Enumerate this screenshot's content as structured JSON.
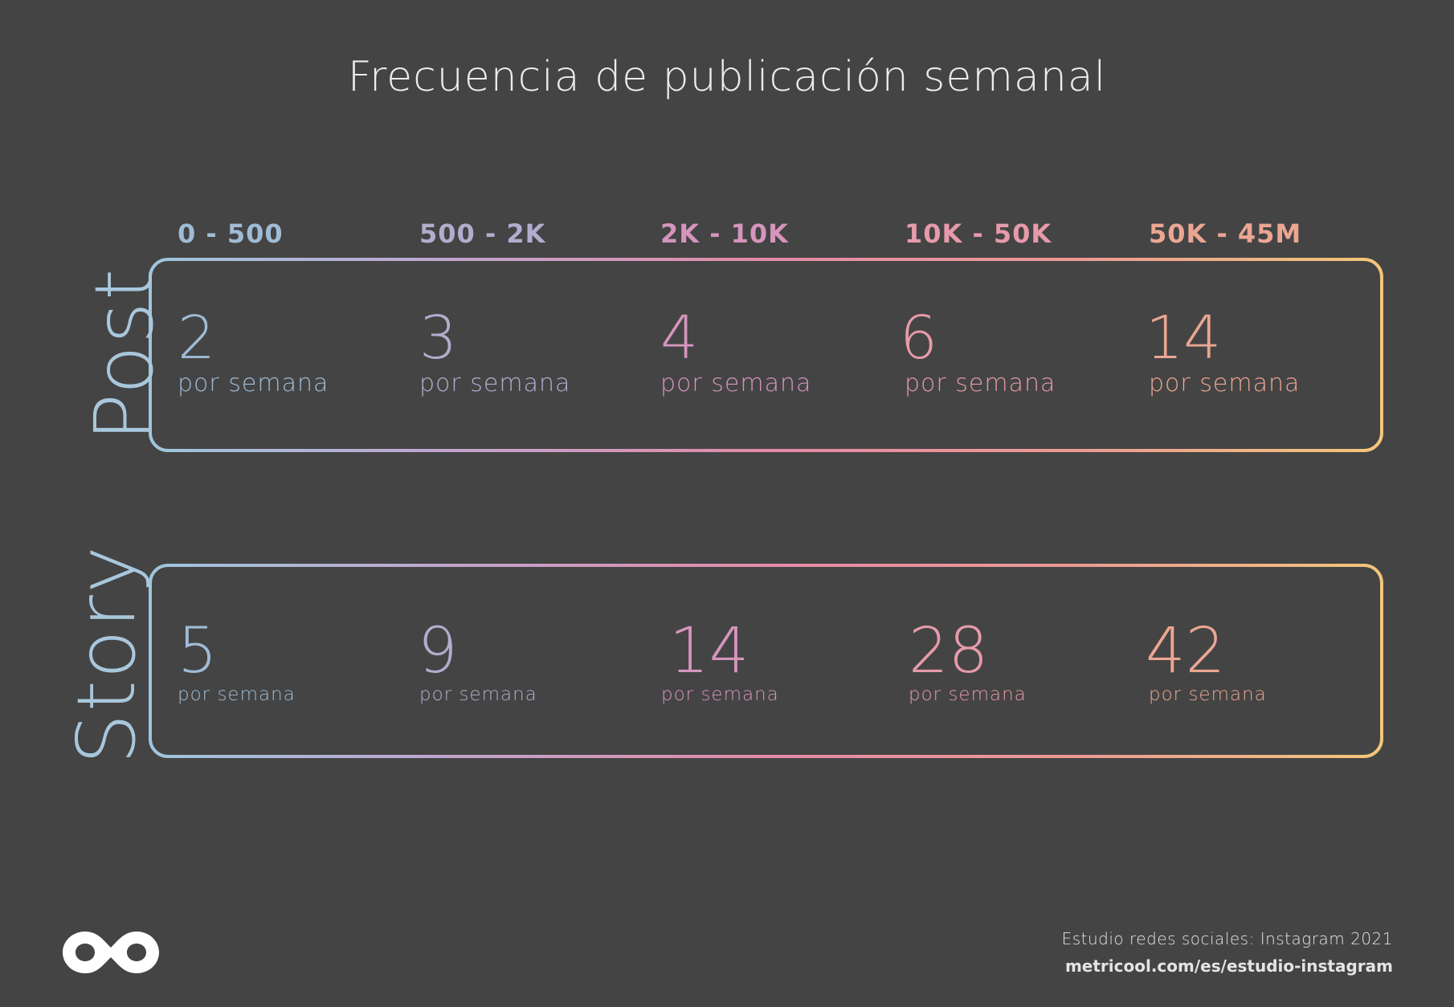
{
  "title": "Frecuencia de publicación semanal",
  "ranges": [
    "0 - 500",
    "500 - 2K",
    "2K - 10K",
    "10K - 50K",
    "50K - 45M"
  ],
  "column_colors": [
    "#9fbcd6",
    "#b4acce",
    "#d595bd",
    "#e69aaa",
    "#eba692"
  ],
  "rows": [
    {
      "label": "Post",
      "values": [
        "2",
        "3",
        "4",
        "6",
        "14"
      ],
      "unit": "por semana"
    },
    {
      "label": "Story",
      "values": [
        "5",
        "9",
        "14",
        "28",
        "42"
      ],
      "unit": "por semana"
    }
  ],
  "gradient": [
    "#9ec6dd",
    "#c2a4cd",
    "#e48ba8",
    "#ec9a93",
    "#f2c77a"
  ],
  "logo": "metricool-logo-icon",
  "footer": {
    "study": "Estudio redes sociales: Instagram 2021",
    "url": "metricool.com/es/estudio-instagram"
  }
}
